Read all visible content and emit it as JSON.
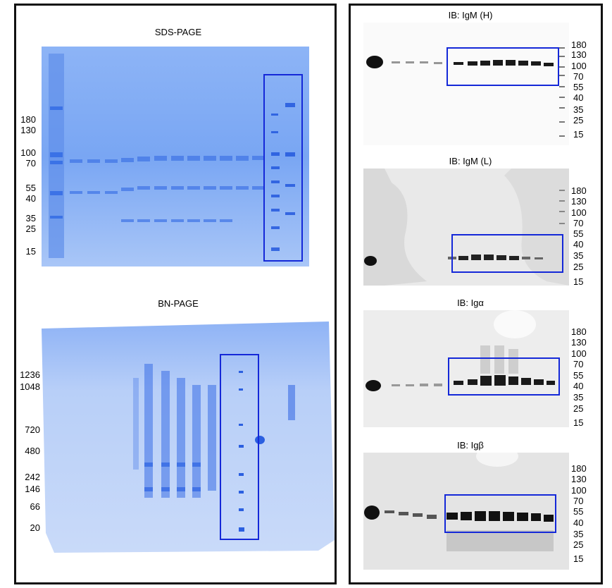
{
  "left_panel": {
    "sds": {
      "title": "SDS-PAGE",
      "markers": [
        "180",
        "130",
        "100",
        "70",
        "55",
        "40",
        "35",
        "25",
        "15"
      ]
    },
    "bn": {
      "title": "BN-PAGE",
      "markers": [
        "1236",
        "1048",
        "720",
        "480",
        "242",
        "146",
        "66",
        "20"
      ]
    }
  },
  "right_panel": {
    "blots": [
      {
        "title": "IB: IgM (H)",
        "markers": [
          "180",
          "130",
          "100",
          "70",
          "55",
          "40",
          "35",
          "25",
          "15"
        ]
      },
      {
        "title": "IB: IgM (L)",
        "markers": [
          "180",
          "130",
          "100",
          "70",
          "55",
          "40",
          "35",
          "25",
          "15"
        ]
      },
      {
        "title": "IB: Igα",
        "markers": [
          "180",
          "130",
          "100",
          "70",
          "55",
          "40",
          "35",
          "25",
          "15"
        ]
      },
      {
        "title": "IB: Igβ",
        "markers": [
          "180",
          "130",
          "100",
          "70",
          "55",
          "40",
          "35",
          "25",
          "15"
        ]
      }
    ]
  },
  "colors": {
    "box": "#1428d8",
    "gel_bg": "#6f9ff0",
    "gel_band": "#1f5ee0",
    "blot_band": "#111111"
  }
}
